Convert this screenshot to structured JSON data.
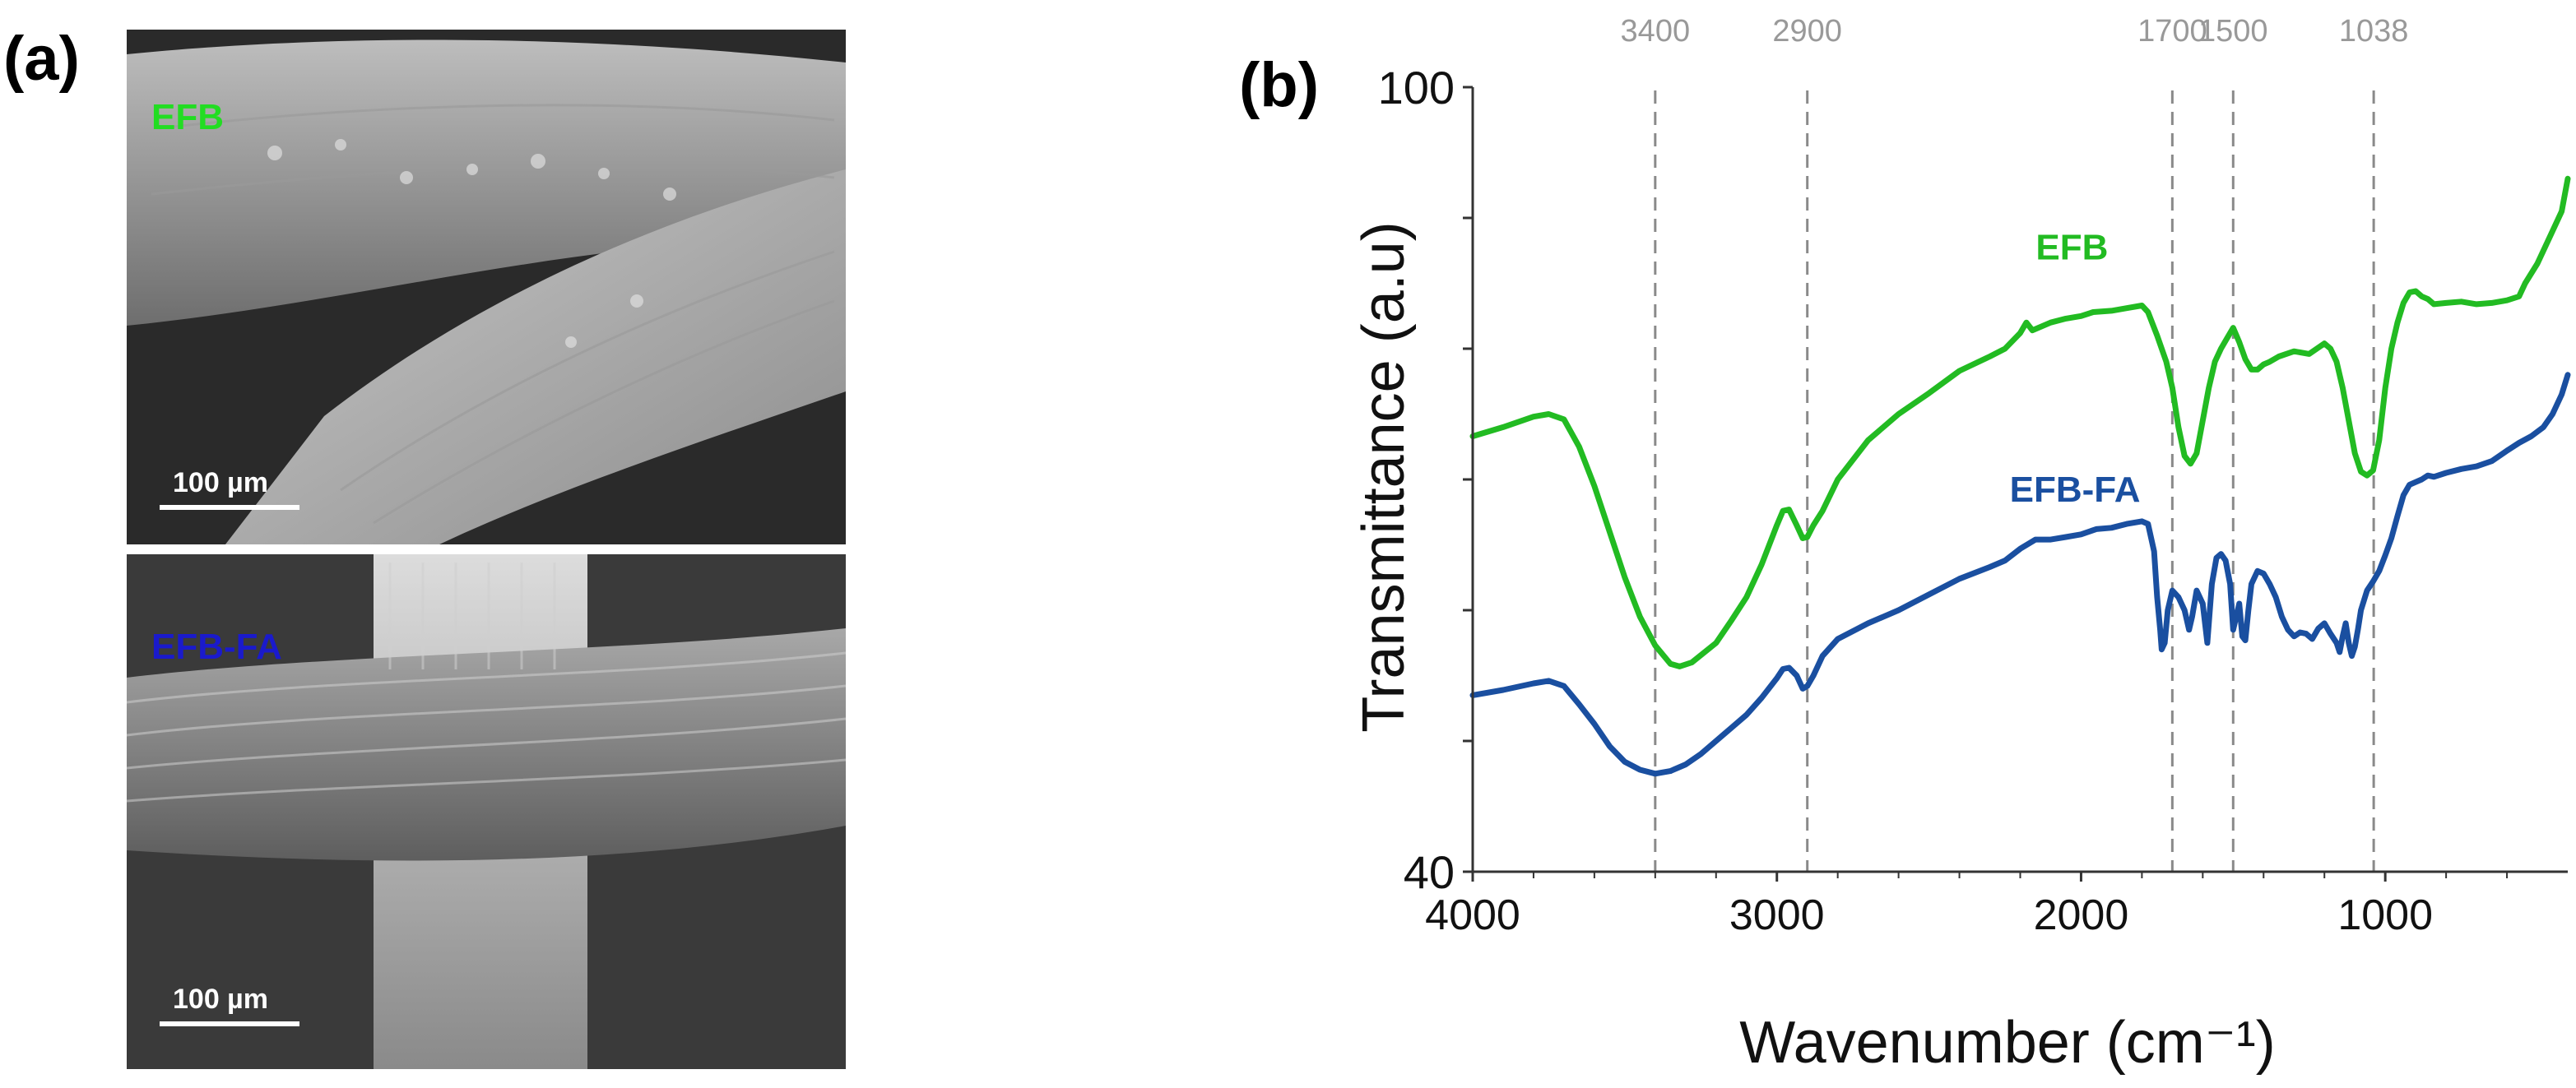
{
  "panels": {
    "a_label": "(a)",
    "b_label": "(b)"
  },
  "sem_images": [
    {
      "tag": "EFB",
      "scale_label": "100 µm",
      "tag_color": "#22dd22"
    },
    {
      "tag": "EFB-FA",
      "scale_label": "100 µm",
      "tag_color": "#1a1acc"
    }
  ],
  "chart_data": {
    "type": "line",
    "title": "",
    "xlabel": "Wavenumber (cm⁻¹)",
    "ylabel": "Transmittance (a.u)",
    "xlim": [
      4000,
      400
    ],
    "ylim": [
      40,
      100
    ],
    "x_ticks": [
      4000,
      3000,
      2000,
      1000
    ],
    "x_tick_labels": [
      "4000",
      "3000",
      "2000",
      "1000"
    ],
    "y_ticks": [
      40,
      100
    ],
    "y_tick_labels": [
      "40",
      "100"
    ],
    "reference_lines": [
      {
        "x": 3400,
        "label": "3400"
      },
      {
        "x": 2900,
        "label": "2900"
      },
      {
        "x": 1700,
        "label": "1700"
      },
      {
        "x": 1500,
        "label": "1500"
      },
      {
        "x": 1038,
        "label": "1038"
      }
    ],
    "series": [
      {
        "name": "EFB",
        "color": "#22bb22",
        "points": [
          [
            4000,
            73.3
          ],
          [
            3900,
            74.0
          ],
          [
            3800,
            74.8
          ],
          [
            3750,
            75.0
          ],
          [
            3700,
            74.6
          ],
          [
            3650,
            72.5
          ],
          [
            3600,
            69.5
          ],
          [
            3550,
            66.0
          ],
          [
            3500,
            62.5
          ],
          [
            3450,
            59.5
          ],
          [
            3400,
            57.3
          ],
          [
            3350,
            55.9
          ],
          [
            3320,
            55.7
          ],
          [
            3280,
            56.0
          ],
          [
            3200,
            57.5
          ],
          [
            3150,
            59.2
          ],
          [
            3100,
            61.0
          ],
          [
            3050,
            63.5
          ],
          [
            3000,
            66.5
          ],
          [
            2980,
            67.6
          ],
          [
            2960,
            67.7
          ],
          [
            2935,
            66.5
          ],
          [
            2915,
            65.5
          ],
          [
            2900,
            65.6
          ],
          [
            2880,
            66.5
          ],
          [
            2850,
            67.6
          ],
          [
            2800,
            70.0
          ],
          [
            2700,
            73.0
          ],
          [
            2600,
            75.0
          ],
          [
            2500,
            76.6
          ],
          [
            2400,
            78.3
          ],
          [
            2300,
            79.4
          ],
          [
            2250,
            80.0
          ],
          [
            2200,
            81.2
          ],
          [
            2180,
            82.0
          ],
          [
            2160,
            81.4
          ],
          [
            2100,
            82.0
          ],
          [
            2050,
            82.3
          ],
          [
            2000,
            82.5
          ],
          [
            1960,
            82.8
          ],
          [
            1900,
            82.9
          ],
          [
            1850,
            83.1
          ],
          [
            1800,
            83.3
          ],
          [
            1780,
            82.8
          ],
          [
            1750,
            81.0
          ],
          [
            1720,
            79.0
          ],
          [
            1700,
            77.0
          ],
          [
            1680,
            74.0
          ],
          [
            1660,
            71.8
          ],
          [
            1640,
            71.2
          ],
          [
            1620,
            72.0
          ],
          [
            1600,
            74.5
          ],
          [
            1580,
            77.0
          ],
          [
            1560,
            79.0
          ],
          [
            1540,
            80.0
          ],
          [
            1520,
            80.8
          ],
          [
            1500,
            81.6
          ],
          [
            1480,
            80.5
          ],
          [
            1460,
            79.2
          ],
          [
            1440,
            78.4
          ],
          [
            1420,
            78.4
          ],
          [
            1400,
            78.8
          ],
          [
            1380,
            79.0
          ],
          [
            1350,
            79.4
          ],
          [
            1300,
            79.8
          ],
          [
            1250,
            79.6
          ],
          [
            1200,
            80.4
          ],
          [
            1180,
            80.0
          ],
          [
            1160,
            79.0
          ],
          [
            1140,
            77.0
          ],
          [
            1120,
            74.5
          ],
          [
            1100,
            72.0
          ],
          [
            1080,
            70.6
          ],
          [
            1060,
            70.3
          ],
          [
            1040,
            70.7
          ],
          [
            1020,
            73.0
          ],
          [
            1000,
            77.0
          ],
          [
            980,
            80.0
          ],
          [
            960,
            82.0
          ],
          [
            940,
            83.5
          ],
          [
            920,
            84.3
          ],
          [
            900,
            84.4
          ],
          [
            880,
            84.0
          ],
          [
            860,
            83.8
          ],
          [
            840,
            83.4
          ],
          [
            800,
            83.5
          ],
          [
            750,
            83.6
          ],
          [
            700,
            83.4
          ],
          [
            650,
            83.5
          ],
          [
            600,
            83.7
          ],
          [
            560,
            84.0
          ],
          [
            540,
            85.0
          ],
          [
            500,
            86.5
          ],
          [
            460,
            88.5
          ],
          [
            420,
            90.5
          ],
          [
            400,
            93.0
          ]
        ]
      },
      {
        "name": "EFB-FA",
        "color": "#1a4fa0",
        "points": [
          [
            4000,
            53.5
          ],
          [
            3900,
            53.9
          ],
          [
            3800,
            54.4
          ],
          [
            3750,
            54.6
          ],
          [
            3700,
            54.2
          ],
          [
            3650,
            52.8
          ],
          [
            3600,
            51.3
          ],
          [
            3550,
            49.6
          ],
          [
            3500,
            48.4
          ],
          [
            3450,
            47.8
          ],
          [
            3400,
            47.5
          ],
          [
            3350,
            47.7
          ],
          [
            3300,
            48.2
          ],
          [
            3250,
            49.0
          ],
          [
            3200,
            50.0
          ],
          [
            3150,
            51.0
          ],
          [
            3100,
            52.0
          ],
          [
            3050,
            53.3
          ],
          [
            3000,
            54.8
          ],
          [
            2980,
            55.5
          ],
          [
            2960,
            55.6
          ],
          [
            2935,
            55.0
          ],
          [
            2915,
            54.0
          ],
          [
            2900,
            54.2
          ],
          [
            2880,
            55.0
          ],
          [
            2850,
            56.5
          ],
          [
            2800,
            57.8
          ],
          [
            2700,
            59.0
          ],
          [
            2600,
            60.0
          ],
          [
            2500,
            61.2
          ],
          [
            2400,
            62.4
          ],
          [
            2300,
            63.3
          ],
          [
            2250,
            63.8
          ],
          [
            2200,
            64.7
          ],
          [
            2150,
            65.4
          ],
          [
            2100,
            65.4
          ],
          [
            2050,
            65.6
          ],
          [
            2000,
            65.8
          ],
          [
            1950,
            66.2
          ],
          [
            1900,
            66.3
          ],
          [
            1850,
            66.6
          ],
          [
            1800,
            66.8
          ],
          [
            1780,
            66.6
          ],
          [
            1760,
            64.5
          ],
          [
            1750,
            61.0
          ],
          [
            1740,
            58.5
          ],
          [
            1735,
            57.0
          ],
          [
            1725,
            57.5
          ],
          [
            1715,
            60.0
          ],
          [
            1700,
            61.5
          ],
          [
            1680,
            61.0
          ],
          [
            1660,
            60.0
          ],
          [
            1645,
            58.5
          ],
          [
            1635,
            59.5
          ],
          [
            1620,
            61.5
          ],
          [
            1600,
            60.5
          ],
          [
            1585,
            57.5
          ],
          [
            1570,
            62.0
          ],
          [
            1555,
            64.0
          ],
          [
            1540,
            64.3
          ],
          [
            1525,
            63.8
          ],
          [
            1510,
            62.0
          ],
          [
            1500,
            58.5
          ],
          [
            1490,
            59.5
          ],
          [
            1480,
            60.5
          ],
          [
            1470,
            58.0
          ],
          [
            1460,
            57.7
          ],
          [
            1450,
            60.0
          ],
          [
            1440,
            62.0
          ],
          [
            1420,
            63.0
          ],
          [
            1400,
            62.8
          ],
          [
            1380,
            62.0
          ],
          [
            1360,
            61.0
          ],
          [
            1340,
            59.5
          ],
          [
            1320,
            58.5
          ],
          [
            1300,
            58.0
          ],
          [
            1280,
            58.3
          ],
          [
            1260,
            58.2
          ],
          [
            1240,
            57.8
          ],
          [
            1220,
            58.6
          ],
          [
            1200,
            59.0
          ],
          [
            1180,
            58.2
          ],
          [
            1160,
            57.5
          ],
          [
            1150,
            56.8
          ],
          [
            1140,
            58.0
          ],
          [
            1130,
            59.0
          ],
          [
            1120,
            57.5
          ],
          [
            1110,
            56.5
          ],
          [
            1100,
            57.2
          ],
          [
            1090,
            58.5
          ],
          [
            1080,
            60.0
          ],
          [
            1060,
            61.5
          ],
          [
            1040,
            62.2
          ],
          [
            1020,
            63.0
          ],
          [
            1000,
            64.2
          ],
          [
            980,
            65.5
          ],
          [
            960,
            67.2
          ],
          [
            940,
            68.8
          ],
          [
            920,
            69.6
          ],
          [
            900,
            69.8
          ],
          [
            880,
            70.0
          ],
          [
            860,
            70.3
          ],
          [
            840,
            70.2
          ],
          [
            800,
            70.5
          ],
          [
            750,
            70.8
          ],
          [
            700,
            71.0
          ],
          [
            650,
            71.4
          ],
          [
            600,
            72.2
          ],
          [
            560,
            72.8
          ],
          [
            520,
            73.3
          ],
          [
            480,
            74.0
          ],
          [
            450,
            75.0
          ],
          [
            420,
            76.5
          ],
          [
            400,
            78.0
          ]
        ]
      }
    ],
    "annotations": [
      {
        "text": "EFB",
        "series": "EFB"
      },
      {
        "text": "EFB-FA",
        "series": "EFB-FA"
      }
    ]
  }
}
